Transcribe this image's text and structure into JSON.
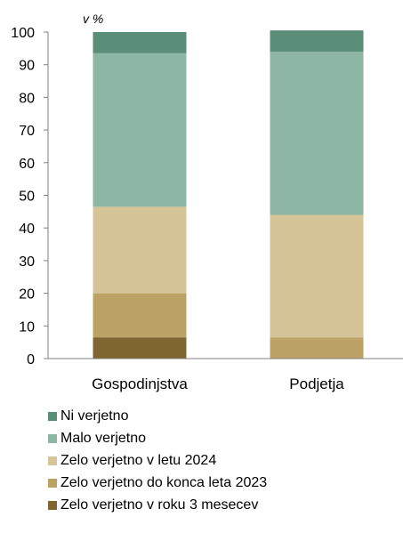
{
  "chart_data": {
    "type": "bar",
    "stacked": true,
    "ylabel": "v %",
    "ylim": [
      0,
      100
    ],
    "yticks": [
      0,
      10,
      20,
      30,
      40,
      50,
      60,
      70,
      80,
      90,
      100
    ],
    "categories": [
      "Gospodinjstva",
      "Podjetja"
    ],
    "series": [
      {
        "name": "Zelo verjetno v roku 3 mesecev",
        "color": "#7f6530",
        "values": [
          6.5,
          0
        ]
      },
      {
        "name": "Zelo verjetno do konca leta 2023",
        "color": "#bca365",
        "values": [
          13.5,
          6.5
        ]
      },
      {
        "name": "Zelo verjetno v letu 2024",
        "color": "#d5c497",
        "values": [
          26.5,
          37.5
        ]
      },
      {
        "name": "Malo verjetno",
        "color": "#8db6a4",
        "values": [
          47,
          50
        ]
      },
      {
        "name": "Ni verjetno",
        "color": "#5b8e79",
        "values": [
          6.5,
          6.5
        ]
      }
    ],
    "legend": [
      "Ni verjetno",
      "Malo verjetno",
      "Zelo verjetno v letu 2024",
      "Zelo verjetno do konca leta 2023",
      "Zelo verjetno v roku 3 mesecev"
    ],
    "legend_position": "bottom",
    "grid": false
  }
}
